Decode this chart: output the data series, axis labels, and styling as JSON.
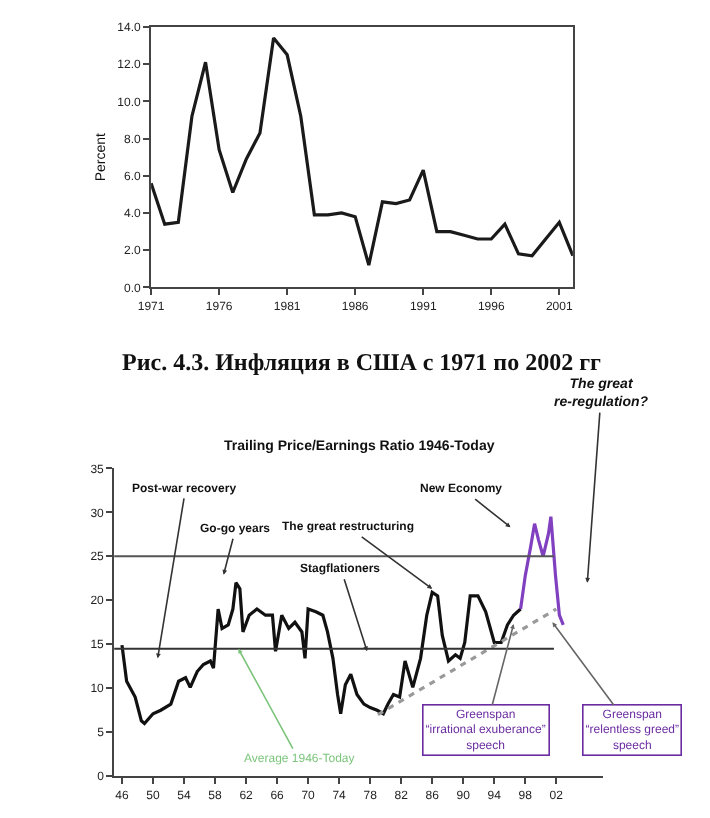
{
  "chart_data": [
    {
      "type": "line",
      "ylabel": "Percent",
      "x": [
        1971,
        1972,
        1973,
        1974,
        1975,
        1976,
        1977,
        1978,
        1979,
        1980,
        1981,
        1982,
        1983,
        1984,
        1985,
        1986,
        1987,
        1988,
        1989,
        1990,
        1991,
        1992,
        1993,
        1994,
        1995,
        1996,
        1997,
        1998,
        1999,
        2000,
        2001,
        2002
      ],
      "series": [
        {
          "color": "#1a1a1a",
          "values": [
            5.6,
            3.4,
            3.5,
            9.2,
            12.1,
            7.4,
            5.1,
            6.9,
            8.3,
            13.4,
            12.5,
            9.2,
            3.9,
            3.9,
            4.0,
            3.8,
            1.2,
            4.6,
            4.5,
            4.7,
            6.3,
            3.0,
            3.0,
            2.8,
            2.6,
            2.6,
            3.4,
            1.8,
            1.7,
            2.6,
            3.5,
            1.7
          ]
        }
      ],
      "xlim": [
        1971,
        2002
      ],
      "xticks": [
        1971,
        1976,
        1981,
        1986,
        1991,
        1996,
        2001
      ],
      "ylim": [
        0,
        14
      ],
      "yticks": [
        {
          "value": 0,
          "label": "0.0"
        },
        {
          "value": 2,
          "label": "2.0"
        },
        {
          "value": 4,
          "label": "4.0"
        },
        {
          "value": 6,
          "label": "6.0"
        },
        {
          "value": 8,
          "label": "8.0"
        },
        {
          "value": 10,
          "label": "10.0"
        },
        {
          "value": 12,
          "label": "12.0"
        },
        {
          "value": 14,
          "label": "14.0"
        }
      ],
      "annotations": [
        "Рис. 4.3. Инфляция в США с 1971 по 2002 гг"
      ]
    },
    {
      "type": "line",
      "title": "Trailing Price/Earnings Ratio 1946-Today",
      "series": [
        {
          "color": "#111111",
          "x": [
            1946,
            1946.6,
            1947.7,
            1948.5,
            1948.9,
            1950,
            1951,
            1952.3,
            1953.3,
            1954.2,
            1954.8,
            1955.7,
            1956.5,
            1957.4,
            1957.8,
            1958.4,
            1958.9,
            1959.7,
            1960.3,
            1960.7,
            1961.2,
            1961.6,
            1962.4,
            1963.4,
            1964.5,
            1965.4,
            1965.8,
            1966.6,
            1967.5,
            1968.3,
            1969.2,
            1969.6,
            1970,
            1971,
            1971.9,
            1972.5,
            1973.2,
            1973.8,
            1974.2,
            1974.8,
            1975.5,
            1976.3,
            1977.2,
            1978,
            1978.9,
            1979.7,
            1980.3,
            1981,
            1981.8,
            1982.5,
            1983.5,
            1984.5,
            1985.3,
            1986,
            1986.7,
            1987.3,
            1988.1,
            1989,
            1989.6,
            1990.2,
            1990.9,
            1991.9,
            1992.9,
            1994,
            1994.9,
            1995.7,
            1996.5,
            1997.4
          ],
          "values": [
            14.9,
            10.8,
            9.0,
            6.3,
            6.0,
            7.1,
            7.5,
            8.2,
            10.8,
            11.2,
            10.1,
            11.9,
            12.7,
            13.1,
            12.3,
            19.0,
            16.8,
            17.2,
            19.0,
            22.0,
            21.3,
            16.4,
            18.3,
            19.0,
            18.3,
            18.3,
            14.2,
            18.3,
            16.8,
            17.5,
            16.4,
            13.4,
            19.0,
            18.7,
            18.3,
            16.4,
            13.4,
            9.3,
            7.1,
            10.4,
            11.6,
            9.3,
            8.2,
            7.8,
            7.5,
            7.1,
            8.2,
            9.3,
            9.0,
            13.1,
            10.1,
            13.4,
            18.3,
            20.9,
            20.5,
            16.0,
            13.1,
            13.8,
            13.4,
            15.2,
            20.5,
            20.5,
            18.7,
            15.2,
            15.2,
            17.2,
            18.3,
            19.0
          ]
        },
        {
          "color": "#8040c0",
          "x": [
            1997.4,
            1998,
            1998.7,
            1999.2,
            1999.7,
            2000.3,
            2001,
            2001.3,
            2001.9,
            2002.4,
            2002.9
          ],
          "values": [
            19.0,
            22.8,
            26.1,
            28.7,
            26.9,
            25.0,
            27.6,
            29.5,
            22.8,
            18.3,
            17.2
          ]
        },
        {
          "color": "#999999",
          "line_style": "dotted",
          "x": [
            1979,
            2002
          ],
          "values": [
            7,
            19
          ]
        }
      ],
      "xlim": [
        1945,
        2008
      ],
      "xticks": [
        {
          "value": 1946,
          "label": "46"
        },
        {
          "value": 1950,
          "label": "50"
        },
        {
          "value": 1954,
          "label": "54"
        },
        {
          "value": 1958,
          "label": "58"
        },
        {
          "value": 1962,
          "label": "62"
        },
        {
          "value": 1966,
          "label": "66"
        },
        {
          "value": 1970,
          "label": "70"
        },
        {
          "value": 1974,
          "label": "74"
        },
        {
          "value": 1978,
          "label": "78"
        },
        {
          "value": 1982,
          "label": "82"
        },
        {
          "value": 1986,
          "label": "86"
        },
        {
          "value": 1990,
          "label": "90"
        },
        {
          "value": 1994,
          "label": "94"
        },
        {
          "value": 1998,
          "label": "98"
        },
        {
          "value": 2002,
          "label": "02"
        }
      ],
      "ylim": [
        0,
        35
      ],
      "yticks": [
        0,
        5,
        10,
        15,
        20,
        25,
        30,
        35
      ],
      "ref_lines": [
        {
          "axis": "y",
          "value": 25,
          "color": "#555555"
        },
        {
          "axis": "y",
          "value": 14.5,
          "color": "#333333"
        }
      ],
      "annotations": [
        {
          "text": "The great\nre-regulation?",
          "x": 2006,
          "y": 22
        },
        {
          "text": "Post-war recovery",
          "x": 1950.6,
          "y": 13.4
        },
        {
          "text": "Go-go years",
          "x": 1959.1,
          "y": 22.9
        },
        {
          "text": "The great restructuring",
          "x": 1986,
          "y": 21.3
        },
        {
          "text": "Stagflationers",
          "x": 1977.6,
          "y": 14.2
        },
        {
          "text": "New Economy",
          "x": 1996.1,
          "y": 28.3
        },
        {
          "text": "Average 1946-Today",
          "x": 1961,
          "y": 14.5
        },
        {
          "text": "Greenspan\n“irrational exuberance”\nspeech",
          "x": 1996.5,
          "y": 17.3
        },
        {
          "text": "Greenspan\n“relentless greed”\nspeech",
          "x": 2001.5,
          "y": 17.5
        }
      ]
    }
  ]
}
